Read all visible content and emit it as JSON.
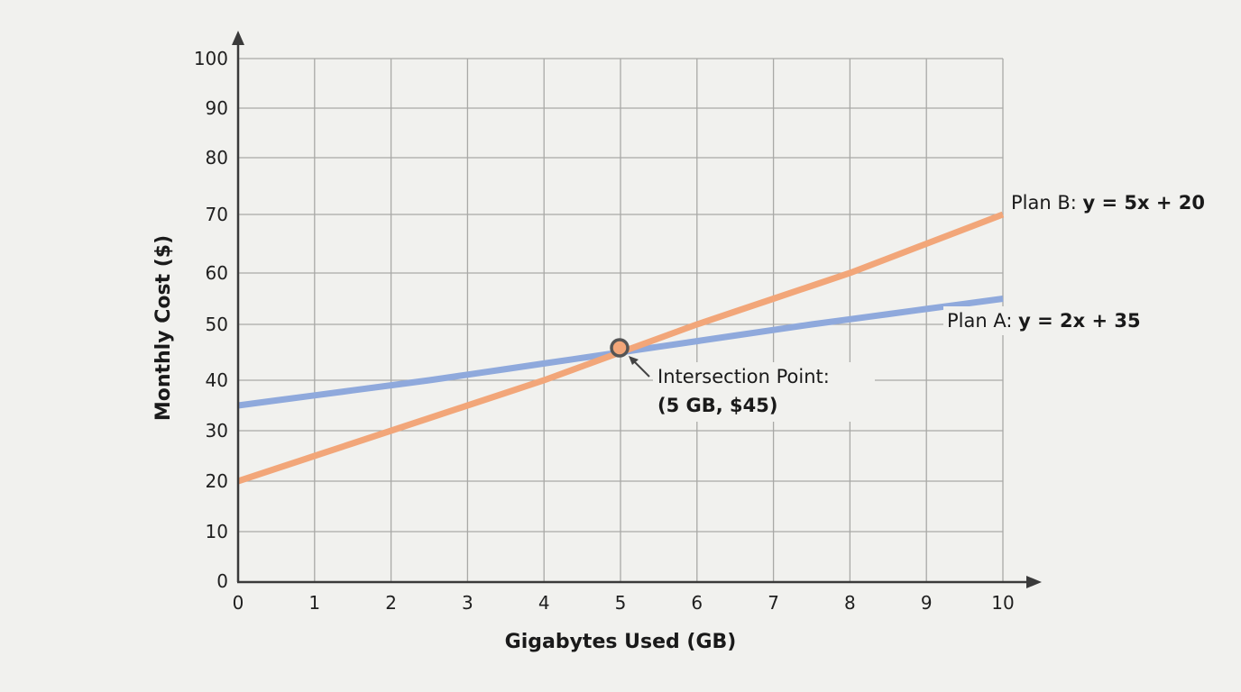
{
  "chart_data": {
    "type": "line",
    "title": "",
    "xlabel": "Gigabytes Used (GB)",
    "ylabel": "Monthly Cost ($)",
    "xlim": [
      0,
      10
    ],
    "ylim": [
      0,
      100
    ],
    "grid": true,
    "x_ticks": [
      0,
      1,
      2,
      3,
      4,
      5,
      6,
      7,
      8,
      9,
      10
    ],
    "y_ticks": [
      0,
      10,
      20,
      30,
      40,
      50,
      60,
      70,
      80,
      90,
      100
    ],
    "series": [
      {
        "name": "Plan A",
        "label_prefix": "Plan A: ",
        "equation": "y = 2x + 35",
        "color": "#8fa9dc",
        "x": [
          0,
          10
        ],
        "values": [
          35,
          55
        ]
      },
      {
        "name": "Plan B",
        "label_prefix": "Plan B: ",
        "equation": "y = 5x + 20",
        "color": "#f2a679",
        "x": [
          0,
          10
        ],
        "values": [
          20,
          70
        ]
      }
    ],
    "annotations": [
      {
        "text_line1": "Intersection Point:",
        "text_line2": "(5 GB, $45)",
        "x": 5,
        "y": 45
      }
    ]
  }
}
